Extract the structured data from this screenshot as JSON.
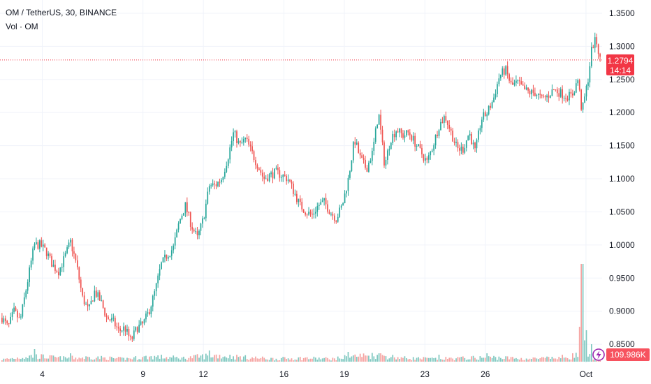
{
  "legend": {
    "symbol_line": "OM / TetherUS, 30, BINANCE",
    "volume_line": "Vol · OM"
  },
  "colors": {
    "up": "#26a69a",
    "down": "#ef5350",
    "up_volume": "#7fc8c0",
    "down_volume": "#f5a3a1",
    "current_price": "#f23645",
    "volume_badge": "#f7525f",
    "logo": "#9c27b0"
  },
  "current_price": {
    "label": "1.2794",
    "countdown": "14:14",
    "value": 1.2794
  },
  "volume_badge": {
    "label": "109.986K"
  },
  "logo": {
    "icon": "lightning-bolt-icon"
  },
  "chart_data": {
    "type": "candlestick",
    "y_axis": {
      "position": "right",
      "range": [
        0.79,
        1.37
      ],
      "ticks": [
        {
          "value": 1.35,
          "label": "1.3500"
        },
        {
          "value": 1.3,
          "label": "1.3000"
        },
        {
          "value": 1.25,
          "label": "1.2500"
        },
        {
          "value": 1.2,
          "label": "1.2000"
        },
        {
          "value": 1.15,
          "label": "1.1500"
        },
        {
          "value": 1.1,
          "label": "1.1000"
        },
        {
          "value": 1.05,
          "label": "1.0500"
        },
        {
          "value": 1.0,
          "label": "1.0000"
        },
        {
          "value": 0.95,
          "label": "0.9500"
        },
        {
          "value": 0.9,
          "label": "0.9000"
        },
        {
          "value": 0.85,
          "label": "0.8500"
        }
      ]
    },
    "x_axis": {
      "range_days": [
        1.9,
        31.8
      ],
      "ticks": [
        {
          "day": 4,
          "label": "4"
        },
        {
          "day": 9,
          "label": "9"
        },
        {
          "day": 12,
          "label": "12"
        },
        {
          "day": 16,
          "label": "16"
        },
        {
          "day": 19,
          "label": "19"
        },
        {
          "day": 23,
          "label": "23"
        },
        {
          "day": 26,
          "label": "26"
        },
        {
          "day": 31,
          "label": "Oct"
        }
      ]
    },
    "grid": true,
    "price_path": [
      [
        2.0,
        0.89
      ],
      [
        2.3,
        0.875
      ],
      [
        2.6,
        0.9
      ],
      [
        2.9,
        0.885
      ],
      [
        3.3,
        0.95
      ],
      [
        3.6,
        1.0
      ],
      [
        3.9,
        1.0
      ],
      [
        4.2,
        0.99
      ],
      [
        4.5,
        0.97
      ],
      [
        4.8,
        0.96
      ],
      [
        5.1,
        0.98
      ],
      [
        5.4,
        1.005
      ],
      [
        5.7,
        0.97
      ],
      [
        6.0,
        0.92
      ],
      [
        6.3,
        0.9
      ],
      [
        6.6,
        0.93
      ],
      [
        6.9,
        0.915
      ],
      [
        7.2,
        0.89
      ],
      [
        7.5,
        0.885
      ],
      [
        7.8,
        0.87
      ],
      [
        8.1,
        0.875
      ],
      [
        8.4,
        0.855
      ],
      [
        8.7,
        0.875
      ],
      [
        9.0,
        0.88
      ],
      [
        9.3,
        0.9
      ],
      [
        9.6,
        0.93
      ],
      [
        9.9,
        0.97
      ],
      [
        10.2,
        0.985
      ],
      [
        10.5,
        0.995
      ],
      [
        10.8,
        1.035
      ],
      [
        11.1,
        1.06
      ],
      [
        11.4,
        1.03
      ],
      [
        11.7,
        1.01
      ],
      [
        12.0,
        1.04
      ],
      [
        12.3,
        1.09
      ],
      [
        12.6,
        1.09
      ],
      [
        12.9,
        1.1
      ],
      [
        13.2,
        1.13
      ],
      [
        13.5,
        1.17
      ],
      [
        13.8,
        1.15
      ],
      [
        14.1,
        1.16
      ],
      [
        14.4,
        1.14
      ],
      [
        14.7,
        1.12
      ],
      [
        15.0,
        1.1
      ],
      [
        15.3,
        1.105
      ],
      [
        15.6,
        1.11
      ],
      [
        15.9,
        1.105
      ],
      [
        16.2,
        1.1
      ],
      [
        16.5,
        1.08
      ],
      [
        16.8,
        1.06
      ],
      [
        17.1,
        1.05
      ],
      [
        17.4,
        1.045
      ],
      [
        17.7,
        1.06
      ],
      [
        18.0,
        1.065
      ],
      [
        18.3,
        1.05
      ],
      [
        18.6,
        1.04
      ],
      [
        18.9,
        1.06
      ],
      [
        19.2,
        1.1
      ],
      [
        19.5,
        1.16
      ],
      [
        19.8,
        1.13
      ],
      [
        20.1,
        1.115
      ],
      [
        20.4,
        1.14
      ],
      [
        20.7,
        1.2
      ],
      [
        21.0,
        1.12
      ],
      [
        21.3,
        1.16
      ],
      [
        21.6,
        1.175
      ],
      [
        21.9,
        1.165
      ],
      [
        22.2,
        1.17
      ],
      [
        22.5,
        1.155
      ],
      [
        22.8,
        1.14
      ],
      [
        23.1,
        1.125
      ],
      [
        23.4,
        1.15
      ],
      [
        23.7,
        1.18
      ],
      [
        24.0,
        1.195
      ],
      [
        24.3,
        1.17
      ],
      [
        24.6,
        1.145
      ],
      [
        24.9,
        1.145
      ],
      [
        25.2,
        1.17
      ],
      [
        25.5,
        1.14
      ],
      [
        25.8,
        1.19
      ],
      [
        26.1,
        1.2
      ],
      [
        26.4,
        1.22
      ],
      [
        26.7,
        1.255
      ],
      [
        27.0,
        1.265
      ],
      [
        27.3,
        1.24
      ],
      [
        27.6,
        1.245
      ],
      [
        27.9,
        1.235
      ],
      [
        28.2,
        1.23
      ],
      [
        28.5,
        1.23
      ],
      [
        28.8,
        1.22
      ],
      [
        29.1,
        1.225
      ],
      [
        29.4,
        1.235
      ],
      [
        29.7,
        1.23
      ],
      [
        30.0,
        1.225
      ],
      [
        30.3,
        1.225
      ],
      [
        30.6,
        1.25
      ],
      [
        30.8,
        1.2
      ],
      [
        31.1,
        1.25
      ],
      [
        31.3,
        1.3
      ],
      [
        31.5,
        1.31
      ],
      [
        31.7,
        1.28
      ]
    ],
    "volume_path": [
      [
        2.0,
        3
      ],
      [
        3.5,
        8
      ],
      [
        5.0,
        5
      ],
      [
        6.5,
        6
      ],
      [
        8.0,
        4
      ],
      [
        9.5,
        7
      ],
      [
        11.0,
        5
      ],
      [
        12.5,
        9
      ],
      [
        14.0,
        6
      ],
      [
        15.5,
        4
      ],
      [
        17.0,
        5
      ],
      [
        18.5,
        4
      ],
      [
        19.5,
        8
      ],
      [
        20.7,
        9
      ],
      [
        22.0,
        5
      ],
      [
        23.5,
        4
      ],
      [
        25.0,
        5
      ],
      [
        26.5,
        6
      ],
      [
        28.0,
        4
      ],
      [
        29.5,
        5
      ],
      [
        30.6,
        9
      ],
      [
        30.8,
        30
      ],
      [
        31.1,
        8
      ],
      [
        31.7,
        6
      ]
    ],
    "volume_spikes": [
      [
        3.6,
        18
      ],
      [
        5.4,
        12
      ],
      [
        12.3,
        16
      ],
      [
        19.2,
        14
      ],
      [
        20.7,
        12
      ],
      [
        23.7,
        10
      ],
      [
        26.1,
        12
      ],
      [
        30.7,
        50
      ],
      [
        30.8,
        140
      ],
      [
        31.0,
        45
      ],
      [
        31.3,
        25
      ]
    ]
  }
}
